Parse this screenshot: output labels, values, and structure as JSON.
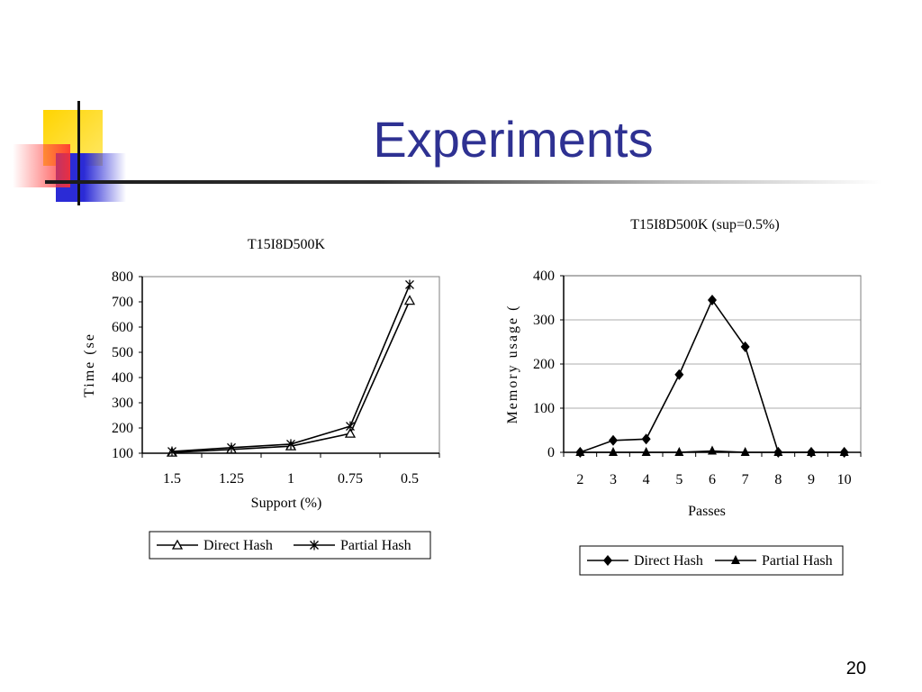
{
  "slide": {
    "title": "Experiments",
    "page_number": "20"
  },
  "colors": {
    "title": "#2e3192",
    "gridline": "#c8c8c8",
    "series_line": "#000000"
  },
  "chart_data": [
    {
      "type": "line",
      "title": "T15I8D500K",
      "xlabel": "Support (%)",
      "ylabel": "Time (se",
      "categories": [
        "1.5",
        "1.25",
        "1",
        "0.75",
        "0.5"
      ],
      "ylim": [
        100,
        800
      ],
      "yticks": [
        "100",
        "200",
        "300",
        "400",
        "500",
        "600",
        "700",
        "800"
      ],
      "grid": false,
      "legend_position": "bottom",
      "series": [
        {
          "name": "Direct Hash",
          "marker": "open-triangle",
          "values": [
            103,
            115,
            128,
            178,
            705
          ]
        },
        {
          "name": "Partial Hash",
          "marker": "asterisk",
          "values": [
            107,
            122,
            136,
            207,
            768
          ]
        }
      ]
    },
    {
      "type": "line",
      "title": "T15I8D500K (sup=0.5%)",
      "xlabel": "Passes",
      "ylabel": "Memory usage (",
      "categories": [
        "2",
        "3",
        "4",
        "5",
        "6",
        "7",
        "8",
        "9",
        "10"
      ],
      "ylim": [
        0,
        400
      ],
      "yticks": [
        "0",
        "100",
        "200",
        "300",
        "400"
      ],
      "grid": true,
      "legend_position": "bottom",
      "series": [
        {
          "name": "Direct Hash",
          "marker": "filled-diamond",
          "values": [
            0,
            27,
            30,
            176,
            345,
            239,
            0,
            0,
            0
          ]
        },
        {
          "name": "Partial Hash",
          "marker": "filled-triangle",
          "values": [
            0,
            0,
            0,
            0,
            3,
            0,
            0,
            0,
            0
          ]
        }
      ]
    }
  ]
}
